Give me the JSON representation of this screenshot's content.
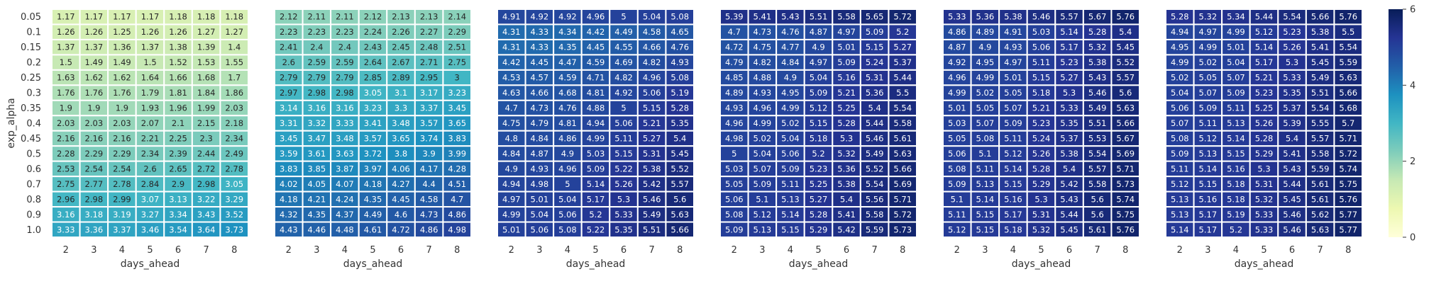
{
  "chart_data": {
    "type": "heatmap",
    "ylabel": "exp_alpha",
    "xlabel": "days_ahead",
    "x": [
      "2",
      "3",
      "4",
      "5",
      "6",
      "7",
      "8"
    ],
    "y": [
      "0.05",
      "0.1",
      "0.15",
      "0.2",
      "0.25",
      "0.3",
      "0.35",
      "0.4",
      "0.45",
      "0.5",
      "0.6",
      "0.7",
      "0.8",
      "0.9",
      "1.0"
    ],
    "colorbar": {
      "range": [
        0,
        6
      ],
      "ticks": [
        "0",
        "2",
        "4",
        "6"
      ],
      "colormap": "YlGnBu"
    },
    "panels": [
      {
        "values": [
          [
            1.17,
            1.17,
            1.17,
            1.17,
            1.18,
            1.18,
            1.18
          ],
          [
            1.26,
            1.26,
            1.25,
            1.26,
            1.26,
            1.27,
            1.27
          ],
          [
            1.37,
            1.37,
            1.36,
            1.37,
            1.38,
            1.39,
            1.4
          ],
          [
            1.5,
            1.49,
            1.49,
            1.5,
            1.52,
            1.53,
            1.55
          ],
          [
            1.63,
            1.62,
            1.62,
            1.64,
            1.66,
            1.68,
            1.7
          ],
          [
            1.76,
            1.76,
            1.76,
            1.79,
            1.81,
            1.84,
            1.86
          ],
          [
            1.9,
            1.9,
            1.9,
            1.93,
            1.96,
            1.99,
            2.03
          ],
          [
            2.03,
            2.03,
            2.03,
            2.07,
            2.1,
            2.15,
            2.18
          ],
          [
            2.16,
            2.16,
            2.16,
            2.21,
            2.25,
            2.3,
            2.34
          ],
          [
            2.28,
            2.29,
            2.29,
            2.34,
            2.39,
            2.44,
            2.49
          ],
          [
            2.53,
            2.54,
            2.54,
            2.6,
            2.65,
            2.72,
            2.78
          ],
          [
            2.75,
            2.77,
            2.78,
            2.84,
            2.9,
            2.98,
            3.05
          ],
          [
            2.96,
            2.98,
            2.99,
            3.07,
            3.13,
            3.22,
            3.29
          ],
          [
            3.16,
            3.18,
            3.19,
            3.27,
            3.34,
            3.43,
            3.52
          ],
          [
            3.33,
            3.36,
            3.37,
            3.46,
            3.54,
            3.64,
            3.73
          ]
        ]
      },
      {
        "values": [
          [
            2.12,
            2.11,
            2.11,
            2.12,
            2.13,
            2.13,
            2.14
          ],
          [
            2.23,
            2.23,
            2.23,
            2.24,
            2.26,
            2.27,
            2.29
          ],
          [
            2.41,
            2.4,
            2.4,
            2.43,
            2.45,
            2.48,
            2.51
          ],
          [
            2.6,
            2.59,
            2.59,
            2.64,
            2.67,
            2.71,
            2.75
          ],
          [
            2.79,
            2.79,
            2.79,
            2.85,
            2.89,
            2.95,
            3
          ],
          [
            2.97,
            2.98,
            2.98,
            3.05,
            3.1,
            3.17,
            3.23
          ],
          [
            3.14,
            3.16,
            3.16,
            3.23,
            3.3,
            3.37,
            3.45
          ],
          [
            3.31,
            3.32,
            3.33,
            3.41,
            3.48,
            3.57,
            3.65
          ],
          [
            3.45,
            3.47,
            3.48,
            3.57,
            3.65,
            3.74,
            3.83
          ],
          [
            3.59,
            3.61,
            3.63,
            3.72,
            3.8,
            3.9,
            3.99
          ],
          [
            3.83,
            3.85,
            3.87,
            3.97,
            4.06,
            4.17,
            4.28
          ],
          [
            4.02,
            4.05,
            4.07,
            4.18,
            4.27,
            4.4,
            4.51
          ],
          [
            4.18,
            4.21,
            4.24,
            4.35,
            4.45,
            4.58,
            4.7
          ],
          [
            4.32,
            4.35,
            4.37,
            4.49,
            4.6,
            4.73,
            4.86
          ],
          [
            4.43,
            4.46,
            4.48,
            4.61,
            4.72,
            4.86,
            4.98
          ]
        ]
      },
      {
        "values": [
          [
            4.91,
            4.92,
            4.92,
            4.96,
            5,
            5.04,
            5.08
          ],
          [
            4.31,
            4.33,
            4.34,
            4.42,
            4.49,
            4.58,
            4.65
          ],
          [
            4.31,
            4.33,
            4.35,
            4.45,
            4.55,
            4.66,
            4.76
          ],
          [
            4.42,
            4.45,
            4.47,
            4.59,
            4.69,
            4.82,
            4.93
          ],
          [
            4.53,
            4.57,
            4.59,
            4.71,
            4.82,
            4.96,
            5.08
          ],
          [
            4.63,
            4.66,
            4.68,
            4.81,
            4.92,
            5.06,
            5.19
          ],
          [
            4.7,
            4.73,
            4.76,
            4.88,
            5,
            5.15,
            5.28
          ],
          [
            4.75,
            4.79,
            4.81,
            4.94,
            5.06,
            5.21,
            5.35
          ],
          [
            4.8,
            4.84,
            4.86,
            4.99,
            5.11,
            5.27,
            5.4
          ],
          [
            4.84,
            4.87,
            4.9,
            5.03,
            5.15,
            5.31,
            5.45
          ],
          [
            4.9,
            4.93,
            4.96,
            5.09,
            5.22,
            5.38,
            5.52
          ],
          [
            4.94,
            4.98,
            5,
            5.14,
            5.26,
            5.42,
            5.57
          ],
          [
            4.97,
            5.01,
            5.04,
            5.17,
            5.3,
            5.46,
            5.6
          ],
          [
            4.99,
            5.04,
            5.06,
            5.2,
            5.33,
            5.49,
            5.63
          ],
          [
            5.01,
            5.06,
            5.08,
            5.22,
            5.35,
            5.51,
            5.66
          ]
        ]
      },
      {
        "values": [
          [
            5.39,
            5.41,
            5.43,
            5.51,
            5.58,
            5.65,
            5.72
          ],
          [
            4.7,
            4.73,
            4.76,
            4.87,
            4.97,
            5.09,
            5.2
          ],
          [
            4.72,
            4.75,
            4.77,
            4.9,
            5.01,
            5.15,
            5.27
          ],
          [
            4.79,
            4.82,
            4.84,
            4.97,
            5.09,
            5.24,
            5.37
          ],
          [
            4.85,
            4.88,
            4.9,
            5.04,
            5.16,
            5.31,
            5.44
          ],
          [
            4.89,
            4.93,
            4.95,
            5.09,
            5.21,
            5.36,
            5.5
          ],
          [
            4.93,
            4.96,
            4.99,
            5.12,
            5.25,
            5.4,
            5.54
          ],
          [
            4.96,
            4.99,
            5.02,
            5.15,
            5.28,
            5.44,
            5.58
          ],
          [
            4.98,
            5.02,
            5.04,
            5.18,
            5.3,
            5.46,
            5.61
          ],
          [
            5,
            5.04,
            5.06,
            5.2,
            5.32,
            5.49,
            5.63
          ],
          [
            5.03,
            5.07,
            5.09,
            5.23,
            5.36,
            5.52,
            5.66
          ],
          [
            5.05,
            5.09,
            5.11,
            5.25,
            5.38,
            5.54,
            5.69
          ],
          [
            5.06,
            5.1,
            5.13,
            5.27,
            5.4,
            5.56,
            5.71
          ],
          [
            5.08,
            5.12,
            5.14,
            5.28,
            5.41,
            5.58,
            5.72
          ],
          [
            5.09,
            5.13,
            5.15,
            5.29,
            5.42,
            5.59,
            5.73
          ]
        ]
      },
      {
        "values": [
          [
            5.33,
            5.36,
            5.38,
            5.46,
            5.57,
            5.67,
            5.76
          ],
          [
            4.86,
            4.89,
            4.91,
            5.03,
            5.14,
            5.28,
            5.4
          ],
          [
            4.87,
            4.9,
            4.93,
            5.06,
            5.17,
            5.32,
            5.45
          ],
          [
            4.92,
            4.95,
            4.97,
            5.11,
            5.23,
            5.38,
            5.52
          ],
          [
            4.96,
            4.99,
            5.01,
            5.15,
            5.27,
            5.43,
            5.57
          ],
          [
            4.99,
            5.02,
            5.05,
            5.18,
            5.3,
            5.46,
            5.6
          ],
          [
            5.01,
            5.05,
            5.07,
            5.21,
            5.33,
            5.49,
            5.63
          ],
          [
            5.03,
            5.07,
            5.09,
            5.23,
            5.35,
            5.51,
            5.66
          ],
          [
            5.05,
            5.08,
            5.11,
            5.24,
            5.37,
            5.53,
            5.67
          ],
          [
            5.06,
            5.1,
            5.12,
            5.26,
            5.38,
            5.54,
            5.69
          ],
          [
            5.08,
            5.11,
            5.14,
            5.28,
            5.4,
            5.57,
            5.71
          ],
          [
            5.09,
            5.13,
            5.15,
            5.29,
            5.42,
            5.58,
            5.73
          ],
          [
            5.1,
            5.14,
            5.16,
            5.3,
            5.43,
            5.6,
            5.74
          ],
          [
            5.11,
            5.15,
            5.17,
            5.31,
            5.44,
            5.6,
            5.75
          ],
          [
            5.12,
            5.15,
            5.18,
            5.32,
            5.45,
            5.61,
            5.76
          ]
        ]
      },
      {
        "values": [
          [
            5.28,
            5.32,
            5.34,
            5.44,
            5.54,
            5.66,
            5.76
          ],
          [
            4.94,
            4.97,
            4.99,
            5.12,
            5.23,
            5.38,
            5.5
          ],
          [
            4.95,
            4.99,
            5.01,
            5.14,
            5.26,
            5.41,
            5.54
          ],
          [
            4.99,
            5.02,
            5.04,
            5.17,
            5.3,
            5.45,
            5.59
          ],
          [
            5.02,
            5.05,
            5.07,
            5.21,
            5.33,
            5.49,
            5.63
          ],
          [
            5.04,
            5.07,
            5.09,
            5.23,
            5.35,
            5.51,
            5.66
          ],
          [
            5.06,
            5.09,
            5.11,
            5.25,
            5.37,
            5.54,
            5.68
          ],
          [
            5.07,
            5.11,
            5.13,
            5.26,
            5.39,
            5.55,
            5.7
          ],
          [
            5.08,
            5.12,
            5.14,
            5.28,
            5.4,
            5.57,
            5.71
          ],
          [
            5.09,
            5.13,
            5.15,
            5.29,
            5.41,
            5.58,
            5.72
          ],
          [
            5.11,
            5.14,
            5.16,
            5.3,
            5.43,
            5.59,
            5.74
          ],
          [
            5.12,
            5.15,
            5.18,
            5.31,
            5.44,
            5.61,
            5.75
          ],
          [
            5.13,
            5.16,
            5.18,
            5.32,
            5.45,
            5.61,
            5.76
          ],
          [
            5.13,
            5.17,
            5.19,
            5.33,
            5.46,
            5.62,
            5.77
          ],
          [
            5.14,
            5.17,
            5.2,
            5.33,
            5.46,
            5.63,
            5.77
          ]
        ]
      }
    ]
  }
}
